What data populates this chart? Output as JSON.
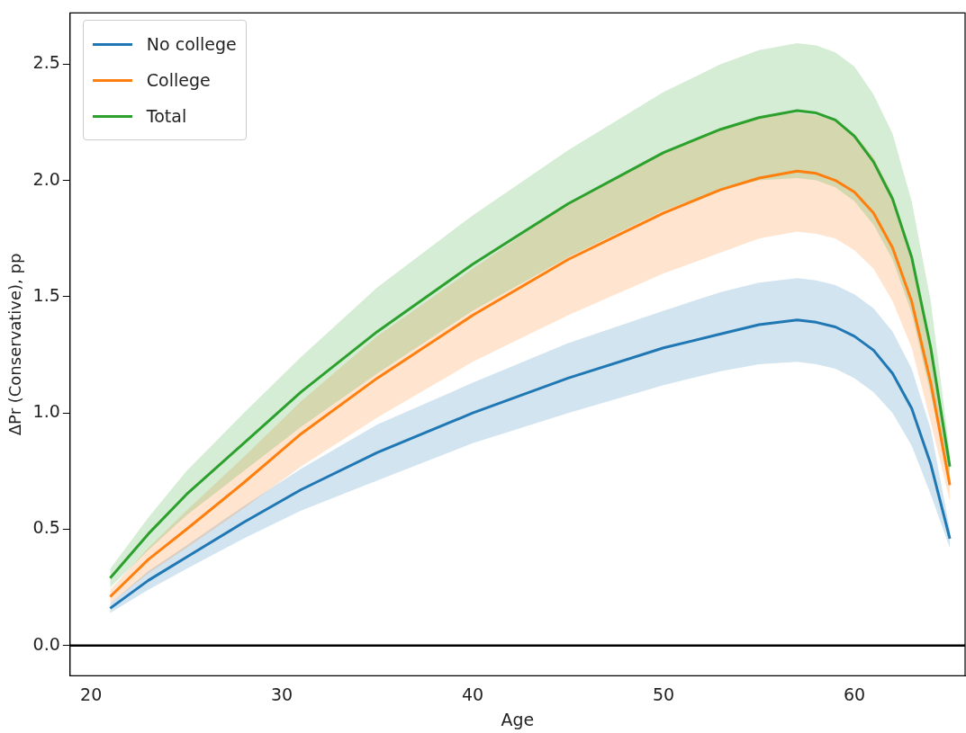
{
  "chart_data": {
    "type": "line",
    "xlabel": "Age",
    "ylabel": "ΔPr (Conservative), pp",
    "x": [
      21,
      23,
      25,
      28,
      31,
      35,
      40,
      45,
      50,
      53,
      55,
      57,
      58,
      59,
      60,
      61,
      62,
      63,
      64,
      65
    ],
    "xlim": [
      18.9,
      65.8
    ],
    "xticks": [
      20,
      30,
      40,
      50,
      60
    ],
    "ylim": [
      -0.13,
      2.72
    ],
    "yticks": [
      {
        "value": 0,
        "label": "0.0"
      },
      0.5,
      {
        "value": 1,
        "label": "1.0"
      },
      1.5,
      {
        "value": 2,
        "label": "2.0"
      },
      2.5
    ],
    "series": [
      {
        "name": "No college",
        "color": "#1f77b4",
        "values": [
          0.16,
          0.28,
          0.38,
          0.53,
          0.67,
          0.83,
          1.0,
          1.15,
          1.28,
          1.34,
          1.38,
          1.4,
          1.39,
          1.37,
          1.33,
          1.27,
          1.17,
          1.02,
          0.78,
          0.46
        ],
        "lower": [
          0.14,
          0.24,
          0.33,
          0.46,
          0.58,
          0.71,
          0.87,
          1.0,
          1.12,
          1.18,
          1.21,
          1.22,
          1.21,
          1.19,
          1.15,
          1.09,
          1.0,
          0.86,
          0.65,
          0.42
        ],
        "upper": [
          0.18,
          0.32,
          0.43,
          0.6,
          0.76,
          0.95,
          1.13,
          1.3,
          1.44,
          1.52,
          1.56,
          1.58,
          1.57,
          1.55,
          1.51,
          1.45,
          1.35,
          1.19,
          0.93,
          0.5
        ]
      },
      {
        "name": "College",
        "color": "#ff7f0e",
        "values": [
          0.21,
          0.37,
          0.5,
          0.7,
          0.91,
          1.15,
          1.42,
          1.66,
          1.86,
          1.96,
          2.01,
          2.04,
          2.03,
          2.0,
          1.95,
          1.86,
          1.71,
          1.48,
          1.13,
          0.69
        ],
        "lower": [
          0.18,
          0.31,
          0.42,
          0.59,
          0.77,
          0.98,
          1.22,
          1.42,
          1.6,
          1.69,
          1.75,
          1.78,
          1.77,
          1.75,
          1.7,
          1.62,
          1.48,
          1.28,
          0.96,
          0.62
        ],
        "upper": [
          0.24,
          0.42,
          0.58,
          0.81,
          1.05,
          1.33,
          1.62,
          1.9,
          2.12,
          2.22,
          2.27,
          2.29,
          2.28,
          2.26,
          2.2,
          2.1,
          1.94,
          1.68,
          1.3,
          0.76
        ]
      },
      {
        "name": "Total",
        "color": "#2ca02c",
        "values": [
          0.29,
          0.48,
          0.65,
          0.87,
          1.09,
          1.35,
          1.64,
          1.9,
          2.12,
          2.22,
          2.27,
          2.3,
          2.29,
          2.26,
          2.19,
          2.08,
          1.92,
          1.67,
          1.28,
          0.77
        ],
        "lower": [
          0.25,
          0.41,
          0.56,
          0.75,
          0.94,
          1.17,
          1.44,
          1.67,
          1.87,
          1.96,
          2.0,
          2.01,
          2.0,
          1.97,
          1.91,
          1.81,
          1.66,
          1.43,
          1.08,
          0.72
        ],
        "upper": [
          0.33,
          0.55,
          0.75,
          1.0,
          1.24,
          1.54,
          1.85,
          2.13,
          2.38,
          2.5,
          2.56,
          2.59,
          2.58,
          2.55,
          2.49,
          2.37,
          2.2,
          1.91,
          1.48,
          0.83
        ]
      }
    ],
    "ref_lines": [
      {
        "axis": "y",
        "value": 0,
        "color": "#000000"
      }
    ],
    "legend": "top left",
    "grid": false,
    "marker": "none",
    "line_style": "solid"
  }
}
